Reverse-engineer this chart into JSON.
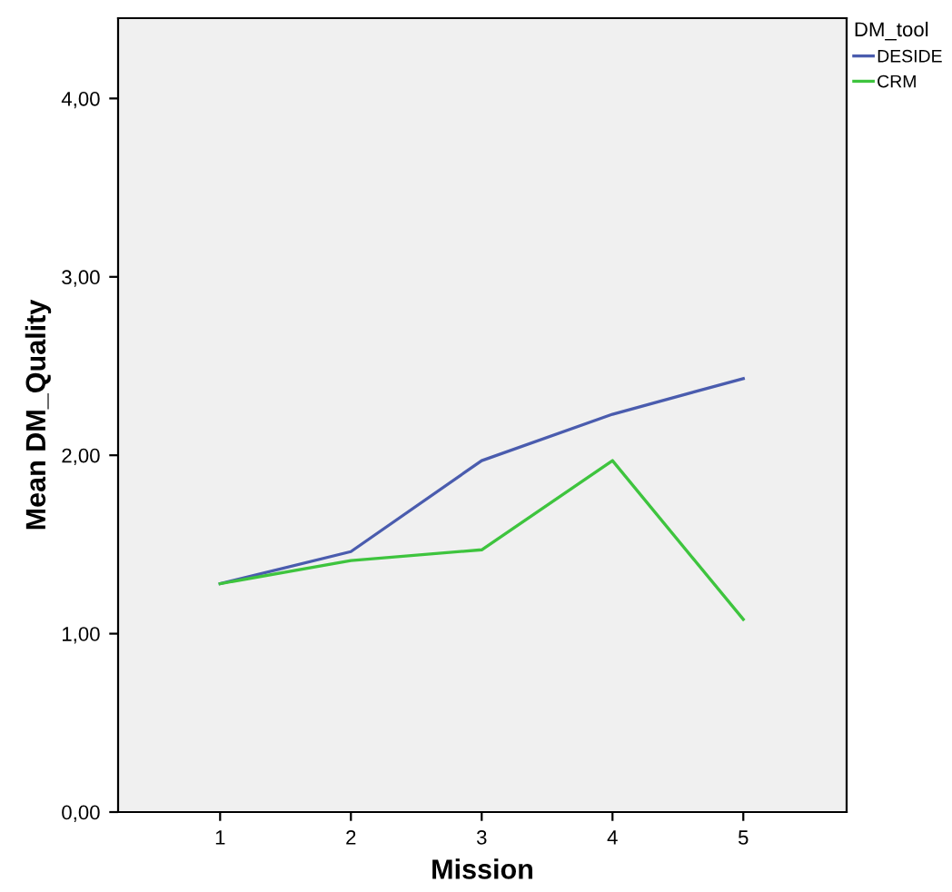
{
  "chart_data": {
    "type": "line",
    "xlabel": "Mission",
    "ylabel": "Mean DM_Quality",
    "legend_title": "DM_tool",
    "legend": "top right",
    "grid": false,
    "marker": "none",
    "line_style": "solid",
    "x": [
      1,
      2,
      3,
      4,
      5
    ],
    "series": [
      {
        "name": "DESIDE",
        "color": "#4a5cae",
        "values": [
          1.28,
          1.46,
          1.97,
          2.23,
          2.43
        ]
      },
      {
        "name": "CRM",
        "color": "#3ec43e",
        "values": [
          1.28,
          1.41,
          1.47,
          1.97,
          1.08
        ]
      }
    ],
    "xlim": [
      0.22,
      5.79
    ],
    "xticks": [
      1,
      2,
      3,
      4,
      5
    ],
    "ylim": [
      0,
      4.45
    ],
    "yticks": [
      {
        "value": 0,
        "label": "0,00"
      },
      {
        "value": 1,
        "label": "1,00"
      },
      {
        "value": 2,
        "label": "2,00"
      },
      {
        "value": 3,
        "label": "3,00"
      },
      {
        "value": 4,
        "label": "4,00"
      }
    ]
  }
}
